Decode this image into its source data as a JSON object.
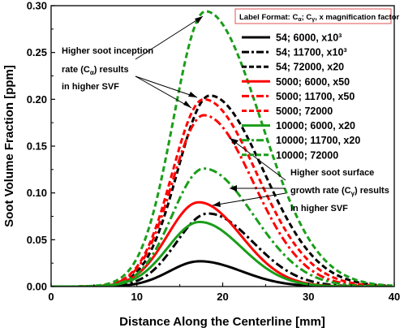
{
  "chart_data": {
    "type": "line",
    "xlabel": "Distance Along the Centerline [mm]",
    "ylabel": "Soot Volume Fraction [ppm]",
    "xlim": [
      0,
      40
    ],
    "ylim": [
      0,
      0.3
    ],
    "x_ticks": [
      "0",
      "10",
      "20",
      "30",
      "40"
    ],
    "y_ticks": [
      "0.00",
      "0.05",
      "0.10",
      "0.15",
      "0.20",
      "0.25",
      "0.30"
    ],
    "legend_title": "Label Format: Cα; Cγ,  x magnification factor",
    "legend_position": "top-right",
    "grid": false,
    "annotations": [
      [
        "Higher soot inception",
        "rate (Cα) results",
        "in higher SVF"
      ],
      [
        "Higher soot surface",
        "growth rate (Cγ) results",
        "in higher SVF"
      ]
    ],
    "series": [
      {
        "name": "54; 6000, x10³",
        "color": "#000000",
        "dash": "solid",
        "peak_x": 17.3,
        "peak_y": 0.027,
        "start_x": 7.5,
        "end_x": 31
      },
      {
        "name": "54; 11700, x10³",
        "color": "#000000",
        "dash": "dashdot",
        "peak_x": 18.3,
        "peak_y": 0.078,
        "start_x": 8,
        "end_x": 33
      },
      {
        "name": "54; 72000, x20",
        "color": "#000000",
        "dash": "dash",
        "peak_x": 18.5,
        "peak_y": 0.204,
        "start_x": 8,
        "end_x": 36
      },
      {
        "name": "5000; 6000, x50",
        "color": "#ff0000",
        "dash": "solid",
        "peak_x": 17.2,
        "peak_y": 0.09,
        "start_x": 7,
        "end_x": 31
      },
      {
        "name": "5000; 11700, x50",
        "color": "#ff0000",
        "dash": "dashdot",
        "peak_x": 17.8,
        "peak_y": 0.183,
        "start_x": 7.5,
        "end_x": 34
      },
      {
        "name": "5000; 72000",
        "color": "#ff0000",
        "dash": "dash",
        "peak_x": 17.8,
        "peak_y": 0.2,
        "start_x": 7.5,
        "end_x": 35
      },
      {
        "name": "10000; 6000, x20",
        "color": "#1a9e1a",
        "dash": "solid",
        "peak_x": 17.3,
        "peak_y": 0.069,
        "start_x": 7,
        "end_x": 31
      },
      {
        "name": "10000; 11700, x20",
        "color": "#1a9e1a",
        "dash": "dashdot",
        "peak_x": 17.8,
        "peak_y": 0.126,
        "start_x": 7.5,
        "end_x": 34
      },
      {
        "name": "10000; 72000",
        "color": "#1a9e1a",
        "dash": "dash",
        "peak_x": 18.0,
        "peak_y": 0.294,
        "start_x": 7.5,
        "end_x": 36
      }
    ]
  }
}
